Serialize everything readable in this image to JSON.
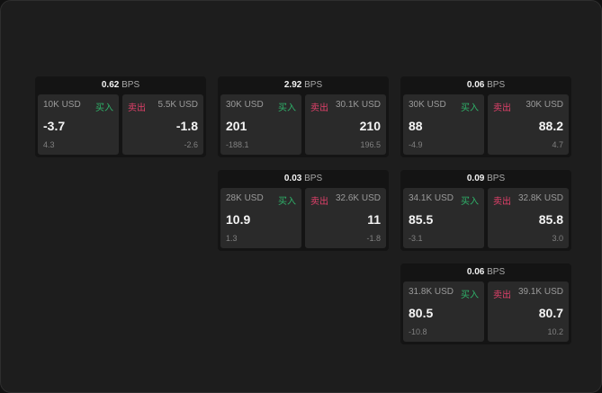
{
  "unit": "BPS",
  "buy_label": "买入",
  "sell_label": "卖出",
  "colors": {
    "buy": "#2fb36a",
    "sell": "#e0406a"
  },
  "cards": [
    {
      "spread": "0.62",
      "bid": {
        "size": "10K USD",
        "price": "-3.7",
        "sub": "4.3"
      },
      "ask": {
        "size": "5.5K USD",
        "price": "-1.8",
        "sub": "-2.6"
      }
    },
    {
      "spread": "2.92",
      "bid": {
        "size": "30K USD",
        "price": "201",
        "sub": "-188.1"
      },
      "ask": {
        "size": "30.1K USD",
        "price": "210",
        "sub": "196.5"
      }
    },
    {
      "spread": "0.06",
      "bid": {
        "size": "30K USD",
        "price": "88",
        "sub": "-4.9"
      },
      "ask": {
        "size": "30K USD",
        "price": "88.2",
        "sub": "4.7"
      }
    },
    {
      "spread": "0.03",
      "bid": {
        "size": "28K USD",
        "price": "10.9",
        "sub": "1.3"
      },
      "ask": {
        "size": "32.6K USD",
        "price": "11",
        "sub": "-1.8"
      }
    },
    {
      "spread": "0.09",
      "bid": {
        "size": "34.1K USD",
        "price": "85.5",
        "sub": "-3.1"
      },
      "ask": {
        "size": "32.8K USD",
        "price": "85.8",
        "sub": "3.0"
      }
    },
    {
      "spread": "0.06",
      "bid": {
        "size": "31.8K USD",
        "price": "80.5",
        "sub": "-10.8"
      },
      "ask": {
        "size": "39.1K USD",
        "price": "80.7",
        "sub": "10.2"
      }
    }
  ]
}
